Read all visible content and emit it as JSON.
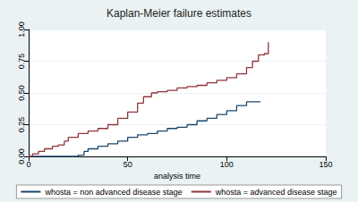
{
  "chart_data": {
    "type": "step",
    "title": "Kaplan-Meier failure estimates",
    "x_label": "analysis time",
    "xlim": [
      0,
      150
    ],
    "xticks": [
      0,
      50,
      100,
      150
    ],
    "ylim": [
      0,
      1
    ],
    "yticks": [
      {
        "value": 0,
        "label": "0.00"
      },
      {
        "value": 0.25,
        "label": "0.25"
      },
      {
        "value": 0.5,
        "label": "0.50"
      },
      {
        "value": 0.75,
        "label": "0.75"
      },
      {
        "value": 1,
        "label": "1.00"
      }
    ],
    "grid": true,
    "legend": "bottom",
    "series": [
      {
        "name": "whosta = non advanced disease stage",
        "color": "#1a476f",
        "line_style": "solid",
        "x": [
          0,
          25,
          28,
          30,
          35,
          40,
          45,
          50,
          55,
          60,
          65,
          70,
          75,
          80,
          85,
          90,
          95,
          100,
          105,
          110,
          117
        ],
        "values": [
          0,
          0.01,
          0.04,
          0.06,
          0.08,
          0.1,
          0.12,
          0.15,
          0.17,
          0.18,
          0.2,
          0.22,
          0.23,
          0.25,
          0.28,
          0.3,
          0.33,
          0.36,
          0.4,
          0.43,
          0.43
        ]
      },
      {
        "name": "whosta = advanced disease stage",
        "color": "#90353b",
        "line_style": "solid",
        "x": [
          0,
          2,
          5,
          8,
          12,
          15,
          18,
          20,
          25,
          30,
          35,
          40,
          45,
          50,
          55,
          58,
          62,
          65,
          70,
          75,
          80,
          85,
          90,
          95,
          100,
          105,
          110,
          113,
          116,
          119,
          121
        ],
        "values": [
          0,
          0.02,
          0.04,
          0.06,
          0.08,
          0.09,
          0.12,
          0.15,
          0.18,
          0.2,
          0.22,
          0.25,
          0.3,
          0.35,
          0.42,
          0.47,
          0.5,
          0.51,
          0.52,
          0.54,
          0.55,
          0.56,
          0.58,
          0.6,
          0.62,
          0.65,
          0.7,
          0.75,
          0.8,
          0.81,
          0.9
        ]
      }
    ]
  }
}
